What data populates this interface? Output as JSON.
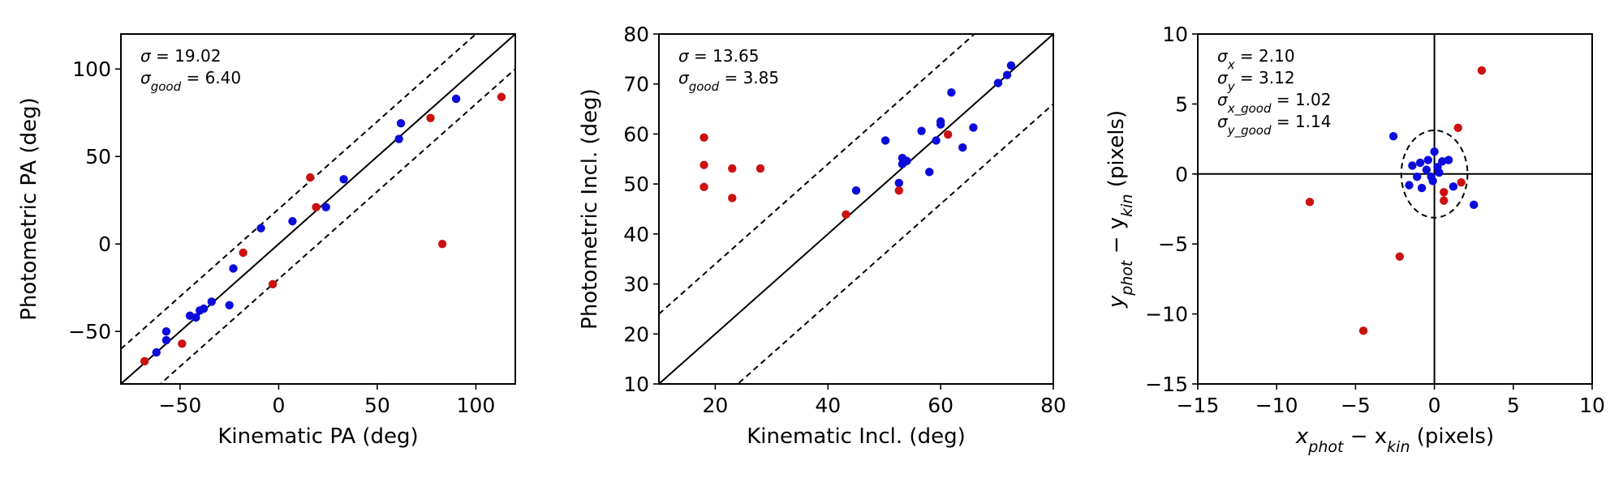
{
  "figure": {
    "name": "photometric-vs-kinematic-comparison"
  },
  "chart_data": [
    {
      "id": "pa",
      "type": "scatter",
      "xlabel": "Kinematic PA (deg)",
      "ylabel": "Photometric PA (deg)",
      "xlim": [
        -80,
        120
      ],
      "ylim": [
        -80,
        120
      ],
      "xticks": [
        -50,
        0,
        50,
        100
      ],
      "yticks": [
        -50,
        0,
        50,
        100
      ],
      "reference_lines": [
        {
          "style": "solid",
          "slope": 1,
          "intercept": 0
        },
        {
          "style": "dashed",
          "slope": 1,
          "intercept": 20
        },
        {
          "style": "dashed",
          "slope": 1,
          "intercept": -20
        }
      ],
      "annotations": [
        {
          "symbol": "σ",
          "sub": "",
          "text": " = 19.02"
        },
        {
          "symbol": "σ",
          "sub": "good",
          "text": " = 6.40"
        }
      ],
      "series": [
        {
          "name": "good",
          "color": "#0b0bdc",
          "points": [
            [
              -62,
              -62
            ],
            [
              -57,
              -55
            ],
            [
              -57,
              -50
            ],
            [
              -45,
              -41
            ],
            [
              -42,
              -42
            ],
            [
              -40,
              -38
            ],
            [
              -38,
              -37
            ],
            [
              -34,
              -33
            ],
            [
              -25,
              -35
            ],
            [
              -23,
              -14
            ],
            [
              -9,
              9
            ],
            [
              7,
              13
            ],
            [
              24,
              21
            ],
            [
              33,
              37
            ],
            [
              61,
              60
            ],
            [
              62,
              69
            ],
            [
              90,
              83
            ]
          ]
        },
        {
          "name": "outlier",
          "color": "#cc1111",
          "points": [
            [
              -68,
              -67
            ],
            [
              -49,
              -57
            ],
            [
              -18,
              -5
            ],
            [
              -3,
              -23
            ],
            [
              16,
              38
            ],
            [
              19,
              21
            ],
            [
              77,
              72
            ],
            [
              83,
              0
            ],
            [
              113,
              84
            ]
          ]
        }
      ]
    },
    {
      "id": "incl",
      "type": "scatter",
      "xlabel": "Kinematic Incl. (deg)",
      "ylabel": "Photometric Incl. (deg)",
      "xlim": [
        10,
        80
      ],
      "ylim": [
        10,
        80
      ],
      "xticks": [
        20,
        40,
        60,
        80
      ],
      "yticks": [
        10,
        20,
        30,
        40,
        50,
        60,
        70,
        80
      ],
      "reference_lines": [
        {
          "style": "solid",
          "slope": 1,
          "intercept": 0
        },
        {
          "style": "dashed",
          "slope": 1,
          "intercept": 14
        },
        {
          "style": "dashed",
          "slope": 1,
          "intercept": -14
        }
      ],
      "annotations": [
        {
          "symbol": "σ",
          "sub": "",
          "text": " = 13.65"
        },
        {
          "symbol": "σ",
          "sub": "good",
          "text": " = 3.85"
        }
      ],
      "series": [
        {
          "name": "good",
          "color": "#0b0bdc",
          "points": [
            [
              45,
              48.7
            ],
            [
              50.2,
              58.7
            ],
            [
              52.6,
              50.2
            ],
            [
              53.2,
              55.2
            ],
            [
              53.2,
              54.0
            ],
            [
              54,
              54.6
            ],
            [
              56.6,
              60.6
            ],
            [
              58,
              52.4
            ],
            [
              59.2,
              58.7
            ],
            [
              60,
              61.9
            ],
            [
              60,
              62.5
            ],
            [
              61.9,
              68.3
            ],
            [
              63.9,
              57.3
            ],
            [
              65.8,
              61.3
            ],
            [
              70.2,
              70.2
            ],
            [
              71.8,
              71.8
            ],
            [
              72.5,
              73.7
            ]
          ]
        },
        {
          "name": "outlier",
          "color": "#cc1111",
          "points": [
            [
              18,
              59.3
            ],
            [
              18,
              53.8
            ],
            [
              18,
              49.4
            ],
            [
              23,
              53.1
            ],
            [
              23,
              47.2
            ],
            [
              28,
              53.1
            ],
            [
              43.2,
              43.9
            ],
            [
              52.6,
              48.7
            ],
            [
              61.3,
              59.9
            ]
          ]
        }
      ]
    },
    {
      "id": "pos",
      "type": "scatter",
      "xlabel_parts": [
        {
          "t": "x"
        },
        {
          "sub": "phot"
        },
        {
          "t": " − x"
        },
        {
          "sub": "kin"
        },
        {
          "t": " (pixels)"
        }
      ],
      "ylabel_parts": [
        {
          "t": "y"
        },
        {
          "sub": "phot"
        },
        {
          "t": " − y"
        },
        {
          "sub": "kin"
        },
        {
          "t": " (pixels)"
        }
      ],
      "xlim": [
        -15,
        10
      ],
      "ylim": [
        -15,
        10
      ],
      "xticks": [
        -15,
        -10,
        -5,
        0,
        5,
        10
      ],
      "yticks": [
        -15,
        -10,
        -5,
        0,
        5,
        10
      ],
      "axis_lines": {
        "x0": 0,
        "y0": 0
      },
      "ellipse": {
        "cx": 0,
        "cy": 0,
        "rx": 2.1,
        "ry": 3.12
      },
      "annotations": [
        {
          "symbol": "σ",
          "sub": "x",
          "text": " = 2.10"
        },
        {
          "symbol": "σ",
          "sub": "y",
          "text": " = 3.12"
        },
        {
          "symbol": "σ",
          "sub": "x_good",
          "text": " = 1.02"
        },
        {
          "symbol": "σ",
          "sub": "y_good",
          "text": " = 1.14"
        }
      ],
      "series": [
        {
          "name": "good",
          "color": "#0b0bdc",
          "points": [
            [
              -2.6,
              2.7
            ],
            [
              -1.4,
              0.6
            ],
            [
              -1.6,
              -0.8
            ],
            [
              -1.1,
              -0.2
            ],
            [
              -0.9,
              0.8
            ],
            [
              -0.8,
              -1.0
            ],
            [
              -0.5,
              0.3
            ],
            [
              -0.4,
              1.0
            ],
            [
              -0.2,
              -0.2
            ],
            [
              -0.1,
              -0.5
            ],
            [
              0.0,
              1.6
            ],
            [
              0.2,
              0.5
            ],
            [
              0.3,
              0.1
            ],
            [
              0.5,
              0.9
            ],
            [
              0.9,
              1.0
            ],
            [
              1.2,
              -0.9
            ],
            [
              2.5,
              -2.2
            ]
          ]
        },
        {
          "name": "outlier",
          "color": "#cc1111",
          "points": [
            [
              -7.9,
              -2.0
            ],
            [
              -4.5,
              -11.2
            ],
            [
              -2.2,
              -5.9
            ],
            [
              0.6,
              -1.3
            ],
            [
              0.6,
              -1.9
            ],
            [
              1.5,
              3.3
            ],
            [
              1.7,
              -0.6
            ],
            [
              3.0,
              7.4
            ]
          ]
        }
      ]
    }
  ]
}
